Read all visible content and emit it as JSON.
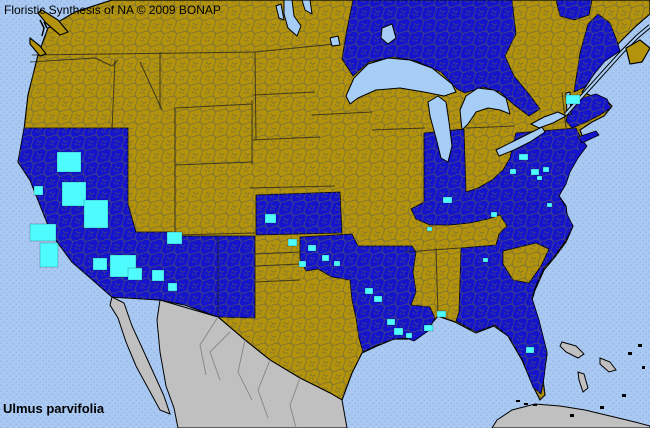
{
  "header": {
    "title": "Floristic Synthesis of NA © 2009 BONAP"
  },
  "footer": {
    "species_name": "Ulmus parvifolia"
  },
  "map": {
    "colors": {
      "ocean": "#a9c9f2",
      "ocean_dot": "#93b5e6",
      "lake": "#a6cdf5",
      "absent_gold": "#b3930c",
      "present_blue": "#1414cc",
      "county_cyan": "#4efcff",
      "oos_gray": "#c0c0c0",
      "county_line": "#5f5f52",
      "coast_black": "#000000"
    },
    "legend_semantics": {
      "present_blue": "state-or-province-present",
      "county_cyan": "county-documented",
      "absent_gold": "not-present",
      "oos_gray": "outside-coverage"
    },
    "regions_present_blue": [
      "Ontario",
      "Quebec (St. Lawrence)",
      "Maine",
      "Massachusetts (SE)",
      "Connecticut",
      "Rhode Island",
      "Pennsylvania",
      "New Jersey",
      "Delaware",
      "Maryland",
      "West Virginia",
      "Virginia",
      "North Carolina",
      "South Carolina (coastal)",
      "Georgia",
      "Florida",
      "Kentucky",
      "Indiana",
      "Arkansas",
      "Louisiana",
      "Oklahoma (east)",
      "Kansas",
      "New Mexico",
      "Arizona",
      "Nevada",
      "California"
    ],
    "regions_absent_gold": [
      "British Columbia",
      "Alberta",
      "Saskatchewan",
      "Manitoba",
      "New Brunswick",
      "Nova Scotia",
      "Washington",
      "Oregon",
      "Idaho",
      "Montana",
      "Wyoming",
      "Utah",
      "Colorado",
      "North Dakota",
      "South Dakota",
      "Nebraska",
      "Minnesota",
      "Iowa",
      "Missouri",
      "Wisconsin",
      "Illinois",
      "Michigan",
      "Ohio",
      "New York",
      "Vermont",
      "New Hampshire",
      "Tennessee",
      "Mississippi",
      "Alabama",
      "Texas",
      "Oklahoma (west)",
      "South Carolina (inland)"
    ],
    "regions_gray_out_of_scope": [
      "Mexico",
      "Cuba",
      "Bahamas"
    ],
    "county_markers": [
      [
        57,
        152,
        24,
        20
      ],
      [
        62,
        182,
        24,
        24
      ],
      [
        84,
        200,
        24,
        28
      ],
      [
        30,
        224,
        26,
        17
      ],
      [
        40,
        243,
        18,
        24
      ],
      [
        34,
        186,
        9,
        9
      ],
      [
        110,
        255,
        26,
        22
      ],
      [
        128,
        268,
        14,
        12
      ],
      [
        93,
        258,
        14,
        12
      ],
      [
        152,
        270,
        12,
        11
      ],
      [
        168,
        283,
        9,
        8
      ],
      [
        167,
        232,
        15,
        12
      ],
      [
        265,
        214,
        11,
        9
      ],
      [
        288,
        239,
        9,
        7
      ],
      [
        308,
        245,
        8,
        6
      ],
      [
        299,
        261,
        7,
        6
      ],
      [
        322,
        255,
        7,
        6
      ],
      [
        334,
        261,
        6,
        5
      ],
      [
        365,
        288,
        8,
        6
      ],
      [
        374,
        296,
        8,
        6
      ],
      [
        387,
        319,
        8,
        6
      ],
      [
        394,
        328,
        9,
        7
      ],
      [
        406,
        333,
        6,
        5
      ],
      [
        424,
        325,
        9,
        6
      ],
      [
        437,
        311,
        9,
        6
      ],
      [
        526,
        347,
        8,
        6
      ],
      [
        483,
        258,
        5,
        4
      ],
      [
        443,
        197,
        9,
        6
      ],
      [
        427,
        227,
        5,
        4
      ],
      [
        491,
        212,
        6,
        5
      ],
      [
        519,
        154,
        9,
        6
      ],
      [
        510,
        169,
        6,
        5
      ],
      [
        531,
        169,
        8,
        6
      ],
      [
        543,
        167,
        6,
        5
      ],
      [
        537,
        176,
        5,
        4
      ],
      [
        547,
        203,
        5,
        4
      ],
      [
        566,
        95,
        14,
        9
      ]
    ]
  }
}
